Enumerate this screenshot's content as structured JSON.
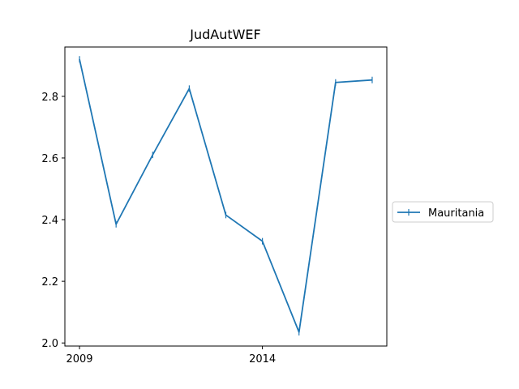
{
  "chart_data": {
    "type": "line",
    "title": "JudAutWEF",
    "xlabel": "",
    "ylabel": "",
    "x": [
      2009,
      2010,
      2011,
      2012,
      2013,
      2014,
      2015,
      2016,
      2017
    ],
    "series": [
      {
        "name": "Mauritania",
        "color": "#1f77b4",
        "values": [
          2.92,
          2.385,
          2.61,
          2.825,
          2.415,
          2.33,
          2.035,
          2.845,
          2.853
        ]
      }
    ],
    "xlim": [
      2008.6,
      2017.4
    ],
    "ylim": [
      1.99,
      2.96
    ],
    "xticks": [
      2009,
      2014
    ],
    "xtick_labels": [
      "2009",
      "2014"
    ],
    "yticks": [
      2.0,
      2.2,
      2.4,
      2.6,
      2.8
    ],
    "ytick_labels": [
      "2.0",
      "2.2",
      "2.4",
      "2.6",
      "2.8"
    ],
    "grid": false,
    "legend_position": "right, outside plot"
  }
}
